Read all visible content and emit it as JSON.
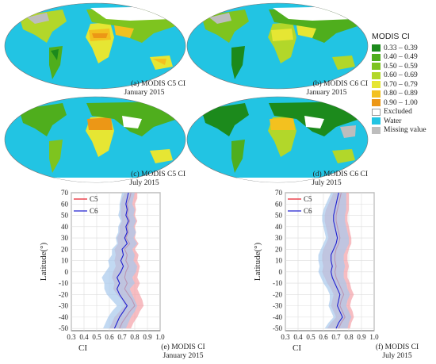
{
  "colors": {
    "water": "#22c4e3",
    "excluded": "#ffffff",
    "missing": "#bdbdbd",
    "c5_line": "#e8202f",
    "c5_band": "#f4a1a8",
    "c6_line": "#2020d0",
    "c6_band": "#a8c9ec"
  },
  "maps": [
    {
      "caption_line1": "(a) MODIS C5 CI",
      "caption_line2": "January 2015"
    },
    {
      "caption_line1": "(b) MODIS C6 CI",
      "caption_line2": "January 2015"
    },
    {
      "caption_line1": "(c) MODIS C5 CI",
      "caption_line2": "July 2015"
    },
    {
      "caption_line1": "(d) MODIS C6 CI",
      "caption_line2": "July 2015"
    }
  ],
  "legend": {
    "title": "MODIS CI",
    "items": [
      {
        "label": "0.33 – 0.39",
        "color": "#1c8a1c"
      },
      {
        "label": "0.40 – 0.49",
        "color": "#4fae1d"
      },
      {
        "label": "0.50 – 0.59",
        "color": "#7ec41f"
      },
      {
        "label": "0.60 – 0.69",
        "color": "#b2d72a"
      },
      {
        "label": "0.70 – 0.79",
        "color": "#e6e633"
      },
      {
        "label": "0.80 – 0.89",
        "color": "#f3c11f"
      },
      {
        "label": "0.90 – 1.00",
        "color": "#ec9716"
      },
      {
        "label": "Excluded",
        "color": "#ffffff"
      },
      {
        "label": "Water",
        "color": "#22c4e3"
      },
      {
        "label": "Missing value",
        "color": "#bdbdbd"
      }
    ]
  },
  "chart_data": [
    {
      "type": "line",
      "caption_line1": "(e) MODIS CI",
      "caption_line2": "January 2015",
      "xlabel": "CI",
      "ylabel": "Latitude(°)",
      "xlim": [
        0.3,
        1.0
      ],
      "ylim": [
        -52,
        70
      ],
      "xticks": [
        "0.3",
        "0.4",
        "0.5",
        "0.6",
        "0.7",
        "0.8",
        "0.9",
        "1.0"
      ],
      "yticks": [
        "70",
        "60",
        "50",
        "40",
        "30",
        "20",
        "10",
        "0",
        "-10",
        "-20",
        "-30",
        "-40",
        "-50"
      ],
      "legend_position": "top-left",
      "orientation": "vertical",
      "y": [
        70,
        65,
        60,
        55,
        50,
        45,
        40,
        35,
        30,
        25,
        20,
        15,
        10,
        5,
        0,
        -5,
        -10,
        -15,
        -20,
        -25,
        -30,
        -35,
        -40,
        -45,
        -50
      ],
      "series": [
        {
          "name": "C5",
          "values": [
            0.77,
            0.76,
            0.74,
            0.75,
            0.74,
            0.76,
            0.74,
            0.75,
            0.73,
            0.76,
            0.72,
            0.74,
            0.73,
            0.75,
            0.73,
            0.72,
            0.74,
            0.72,
            0.75,
            0.78,
            0.8,
            0.76,
            0.73,
            0.7,
            0.68
          ],
          "lower": [
            0.72,
            0.7,
            0.69,
            0.69,
            0.69,
            0.7,
            0.68,
            0.68,
            0.66,
            0.67,
            0.64,
            0.65,
            0.64,
            0.65,
            0.63,
            0.62,
            0.64,
            0.63,
            0.66,
            0.7,
            0.72,
            0.68,
            0.64,
            0.62,
            0.6
          ],
          "upper": [
            0.82,
            0.82,
            0.8,
            0.81,
            0.8,
            0.82,
            0.8,
            0.81,
            0.8,
            0.83,
            0.8,
            0.83,
            0.82,
            0.84,
            0.83,
            0.82,
            0.84,
            0.82,
            0.84,
            0.86,
            0.87,
            0.84,
            0.82,
            0.79,
            0.77
          ]
        },
        {
          "name": "C6",
          "values": [
            0.75,
            0.74,
            0.73,
            0.74,
            0.73,
            0.75,
            0.73,
            0.74,
            0.72,
            0.74,
            0.7,
            0.71,
            0.69,
            0.71,
            0.69,
            0.66,
            0.68,
            0.66,
            0.68,
            0.71,
            0.74,
            0.71,
            0.68,
            0.66,
            0.64
          ],
          "lower": [
            0.7,
            0.69,
            0.68,
            0.68,
            0.67,
            0.69,
            0.67,
            0.67,
            0.65,
            0.66,
            0.62,
            0.62,
            0.59,
            0.6,
            0.57,
            0.54,
            0.56,
            0.56,
            0.58,
            0.62,
            0.66,
            0.62,
            0.59,
            0.57,
            0.55
          ],
          "upper": [
            0.8,
            0.79,
            0.78,
            0.8,
            0.79,
            0.81,
            0.79,
            0.81,
            0.79,
            0.82,
            0.78,
            0.8,
            0.79,
            0.82,
            0.81,
            0.78,
            0.8,
            0.76,
            0.78,
            0.8,
            0.82,
            0.8,
            0.77,
            0.75,
            0.73
          ]
        }
      ]
    },
    {
      "type": "line",
      "caption_line1": "(f) MODIS CI",
      "caption_line2": "July 2015",
      "xlabel": "CI",
      "ylabel": "Latitude(°)",
      "xlim": [
        0.3,
        1.0
      ],
      "ylim": [
        -52,
        70
      ],
      "xticks": [
        "0.3",
        "0.4",
        "0.5",
        "0.6",
        "0.7",
        "0.8",
        "0.9",
        "1.0"
      ],
      "yticks": [
        "70",
        "60",
        "50",
        "40",
        "30",
        "20",
        "10",
        "0",
        "-10",
        "-20",
        "-30",
        "-40",
        "-50"
      ],
      "legend_position": "top-left",
      "orientation": "vertical",
      "y": [
        70,
        65,
        60,
        55,
        50,
        45,
        40,
        35,
        30,
        25,
        20,
        15,
        10,
        5,
        0,
        -5,
        -10,
        -15,
        -20,
        -25,
        -30,
        -35,
        -40,
        -45,
        -50
      ],
      "series": [
        {
          "name": "C5",
          "values": [
            0.74,
            0.73,
            0.72,
            0.71,
            0.7,
            0.7,
            0.71,
            0.72,
            0.73,
            0.72,
            0.7,
            0.69,
            0.69,
            0.7,
            0.69,
            0.7,
            0.72,
            0.74,
            0.76,
            0.74,
            0.73,
            0.75,
            0.77,
            0.74,
            0.72
          ],
          "lower": [
            0.68,
            0.66,
            0.64,
            0.62,
            0.61,
            0.61,
            0.62,
            0.63,
            0.64,
            0.62,
            0.6,
            0.59,
            0.59,
            0.6,
            0.59,
            0.61,
            0.63,
            0.66,
            0.68,
            0.67,
            0.66,
            0.68,
            0.7,
            0.66,
            0.63
          ],
          "upper": [
            0.8,
            0.8,
            0.8,
            0.8,
            0.79,
            0.79,
            0.8,
            0.81,
            0.82,
            0.82,
            0.8,
            0.79,
            0.79,
            0.8,
            0.79,
            0.79,
            0.81,
            0.82,
            0.84,
            0.82,
            0.81,
            0.83,
            0.84,
            0.82,
            0.81
          ]
        },
        {
          "name": "C6",
          "values": [
            0.72,
            0.71,
            0.7,
            0.69,
            0.68,
            0.68,
            0.69,
            0.7,
            0.71,
            0.7,
            0.68,
            0.66,
            0.66,
            0.67,
            0.66,
            0.67,
            0.69,
            0.71,
            0.73,
            0.72,
            0.71,
            0.73,
            0.75,
            0.72,
            0.7
          ],
          "lower": [
            0.66,
            0.64,
            0.62,
            0.6,
            0.59,
            0.59,
            0.6,
            0.61,
            0.62,
            0.6,
            0.58,
            0.56,
            0.56,
            0.57,
            0.56,
            0.58,
            0.6,
            0.63,
            0.65,
            0.65,
            0.64,
            0.66,
            0.68,
            0.64,
            0.61
          ],
          "upper": [
            0.78,
            0.78,
            0.78,
            0.78,
            0.77,
            0.77,
            0.78,
            0.79,
            0.8,
            0.8,
            0.78,
            0.76,
            0.76,
            0.77,
            0.76,
            0.76,
            0.78,
            0.79,
            0.81,
            0.79,
            0.78,
            0.8,
            0.82,
            0.8,
            0.79
          ]
        }
      ]
    }
  ]
}
